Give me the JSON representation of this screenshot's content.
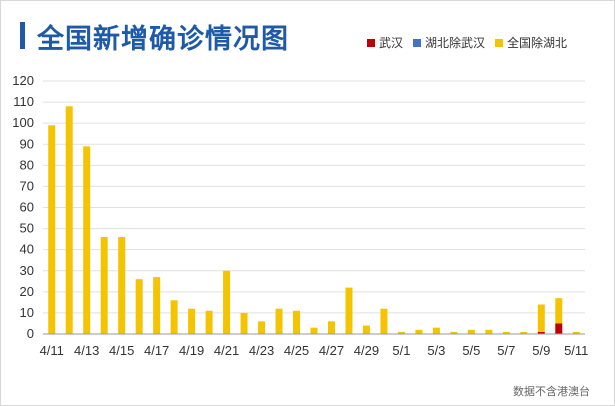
{
  "title": "全国新增确诊情况图",
  "source_note": "数据不含港澳台",
  "colors": {
    "title": "#1e5aa8",
    "wuhan": "#c00000",
    "hubei_ex_wuhan": "#4472c4",
    "national_ex_hubei": "#f5c400",
    "grid": "#e0e0e0"
  },
  "chart_data": {
    "type": "bar",
    "stacked": true,
    "categories": [
      "4/11",
      "4/12",
      "4/13",
      "4/14",
      "4/15",
      "4/16",
      "4/17",
      "4/18",
      "4/19",
      "4/20",
      "4/21",
      "4/22",
      "4/23",
      "4/24",
      "4/25",
      "4/26",
      "4/27",
      "4/28",
      "4/29",
      "4/30",
      "5/1",
      "5/2",
      "5/3",
      "5/4",
      "5/5",
      "5/6",
      "5/7",
      "5/8",
      "5/9",
      "5/10",
      "5/11"
    ],
    "x_tick_labels": [
      "4/11",
      "4/13",
      "4/15",
      "4/17",
      "4/19",
      "4/21",
      "4/23",
      "4/25",
      "4/27",
      "4/29",
      "5/1",
      "5/3",
      "5/5",
      "5/7",
      "5/9",
      "5/11"
    ],
    "series": [
      {
        "name": "武汉",
        "color": "#c00000",
        "values": [
          0,
          0,
          0,
          0,
          0,
          0,
          0,
          0,
          0,
          0,
          0,
          0,
          0,
          0,
          0,
          0,
          0,
          0,
          0,
          0,
          0,
          0,
          0,
          0,
          0,
          0,
          0,
          0,
          1,
          5,
          0
        ]
      },
      {
        "name": "湖北除武汉",
        "color": "#4472c4",
        "values": [
          0,
          0,
          0,
          0,
          0,
          0,
          0,
          0,
          0,
          0,
          0,
          0,
          0,
          0,
          0,
          0,
          0,
          0,
          0,
          0,
          0,
          0,
          0,
          0,
          0,
          0,
          0,
          0,
          0,
          0,
          0
        ]
      },
      {
        "name": "全国除湖北",
        "color": "#f5c400",
        "values": [
          99,
          108,
          89,
          46,
          46,
          26,
          27,
          16,
          12,
          11,
          30,
          10,
          6,
          12,
          11,
          3,
          6,
          22,
          4,
          12,
          1,
          2,
          3,
          1,
          2,
          2,
          1,
          1,
          13,
          12,
          1
        ]
      }
    ],
    "ylim": [
      0,
      120
    ],
    "yticks": [
      0,
      10,
      20,
      30,
      40,
      50,
      60,
      70,
      80,
      90,
      100,
      110,
      120
    ],
    "grid": true,
    "legend_position": "top-right",
    "xlabel": "",
    "ylabel": ""
  }
}
